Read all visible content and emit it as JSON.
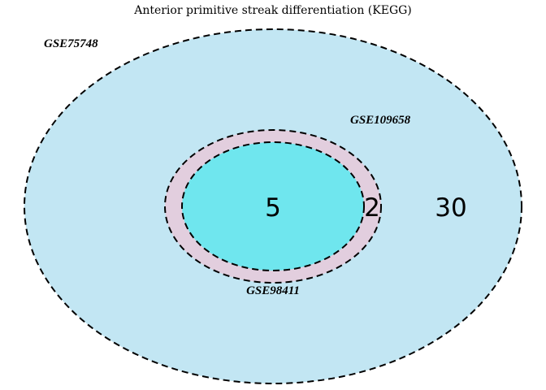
{
  "title": "Anterior primitive streak differentiation (KEGG)",
  "sets": [
    {
      "name": "GSE75748",
      "color": "#c2e6f3"
    },
    {
      "name": "GSE109658",
      "color": "#e2cede"
    },
    {
      "name": "GSE98411",
      "color": "#6fe6ee"
    }
  ],
  "regions": {
    "gse98411_all_three": "5",
    "gse109658_and_gse75748_only": "2",
    "gse75748_only": "30"
  },
  "style": {
    "outline_color": "#000000",
    "outline_dash": "dashed"
  }
}
